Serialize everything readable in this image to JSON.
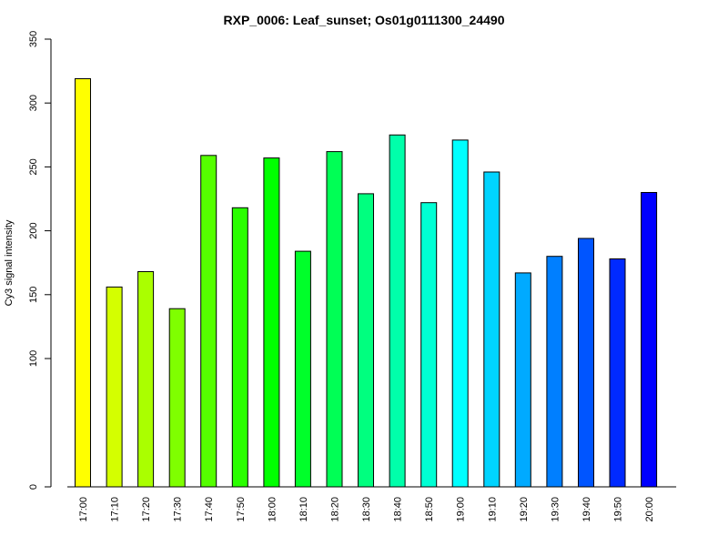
{
  "chart_data": {
    "type": "bar",
    "title": "RXP_0006: Leaf_sunset; Os01g0111300_24490",
    "xlabel": "",
    "ylabel": "Cy3 signal intensity",
    "categories": [
      "17:00",
      "17:10",
      "17:20",
      "17:30",
      "17:40",
      "17:50",
      "18:00",
      "18:10",
      "18:20",
      "18:30",
      "18:40",
      "18:50",
      "19:00",
      "19:10",
      "19:20",
      "19:30",
      "19:40",
      "19:50",
      "20:00"
    ],
    "values": [
      319,
      156,
      168,
      139,
      259,
      218,
      257,
      184,
      262,
      229,
      275,
      222,
      271,
      246,
      167,
      180,
      194,
      178,
      230
    ],
    "colors": [
      "#FFFF00",
      "#D4FF00",
      "#AAFF00",
      "#7FFF00",
      "#55FF00",
      "#2AFF00",
      "#00FF00",
      "#00FF2A",
      "#00FF55",
      "#00FF7F",
      "#00FFAA",
      "#00FFD4",
      "#00FFFF",
      "#00D4FF",
      "#00AAFF",
      "#007FFF",
      "#0055FF",
      "#002AFF",
      "#0000FF"
    ],
    "y_ticks": [
      0,
      100,
      150,
      200,
      250,
      300,
      350
    ],
    "y_tick_labels": [
      "0",
      "100",
      "150",
      "200",
      "250",
      "300",
      "350"
    ],
    "y_scale": "piecewise: 0–100 compressed, 100–350 linear",
    "grid": false,
    "legend": "none"
  }
}
